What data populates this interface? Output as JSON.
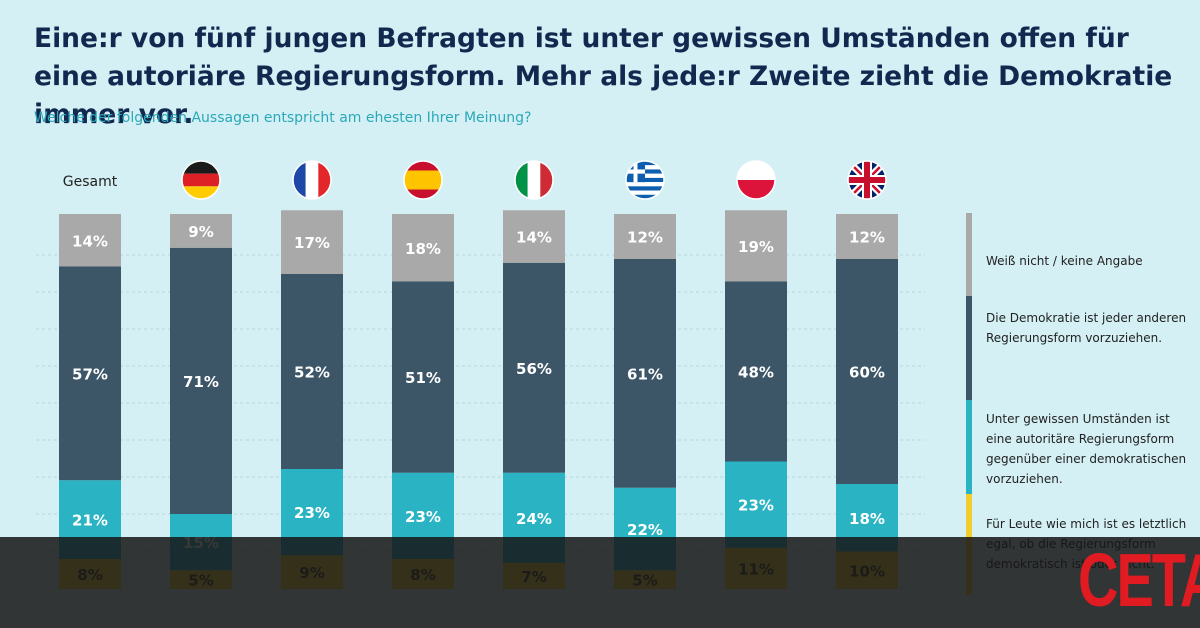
{
  "title": "Eine:r von fünf jungen Befragten ist unter gewissen Umständen offen für eine autoriäre Regierungsform. Mehr als jede:r Zweite zieht die Demokratie immer vor.",
  "subtitle": "Welche der folgenden Aussagen entspricht am ehesten Ihrer Meinung?",
  "brand": "CETA",
  "legend": {
    "items": [
      {
        "label": "Weiß nicht / keine Angabe",
        "color": "#a9a9a9"
      },
      {
        "label": "Die Demokratie ist jeder anderen Regierungsform vorzuziehen.",
        "color": "#3c5668"
      },
      {
        "label": "Unter gewissen Umständen ist eine autoritäre Regierungsform gegenüber einer demokratischen vorzuziehen.",
        "color": "#2ab3c3"
      },
      {
        "label": "Für Leute wie mich ist es letztlich egal, ob die Regierungsform demokratisch ist oder nicht.",
        "color": "#f1ce2e"
      }
    ]
  },
  "chart_data": {
    "type": "bar",
    "stacked": true,
    "categories": [
      "Gesamt",
      "Deutschland",
      "Frankreich",
      "Spanien",
      "Italien",
      "Griechenland",
      "Polen",
      "Vereinigtes Königreich"
    ],
    "category_icons": [
      "",
      "germany-flag-icon",
      "france-flag-icon",
      "spain-flag-icon",
      "italy-flag-icon",
      "greece-flag-icon",
      "poland-flag-icon",
      "uk-flag-icon"
    ],
    "series": [
      {
        "name": "Für Leute wie mich ist es letztlich egal, ob die Regierungsform demokratisch ist oder nicht.",
        "color": "#f1ce2e",
        "values": [
          8,
          5,
          9,
          8,
          7,
          5,
          11,
          10
        ]
      },
      {
        "name": "Unter gewissen Umständen ist eine autoritäre Regierungsform gegenüber einer demokratischen vorzuziehen.",
        "color": "#2ab3c3",
        "values": [
          21,
          15,
          23,
          23,
          24,
          22,
          23,
          18
        ]
      },
      {
        "name": "Die Demokratie ist jeder anderen Regierungsform vorzuziehen.",
        "color": "#3c5668",
        "values": [
          57,
          71,
          52,
          51,
          56,
          61,
          48,
          60
        ]
      },
      {
        "name": "Weiß nicht / keine Angabe",
        "color": "#a9a9a9",
        "values": [
          14,
          9,
          17,
          18,
          14,
          12,
          19,
          12
        ]
      }
    ],
    "value_suffix": "%",
    "ylim": [
      0,
      100
    ],
    "grid": true,
    "legend_position": "right"
  }
}
